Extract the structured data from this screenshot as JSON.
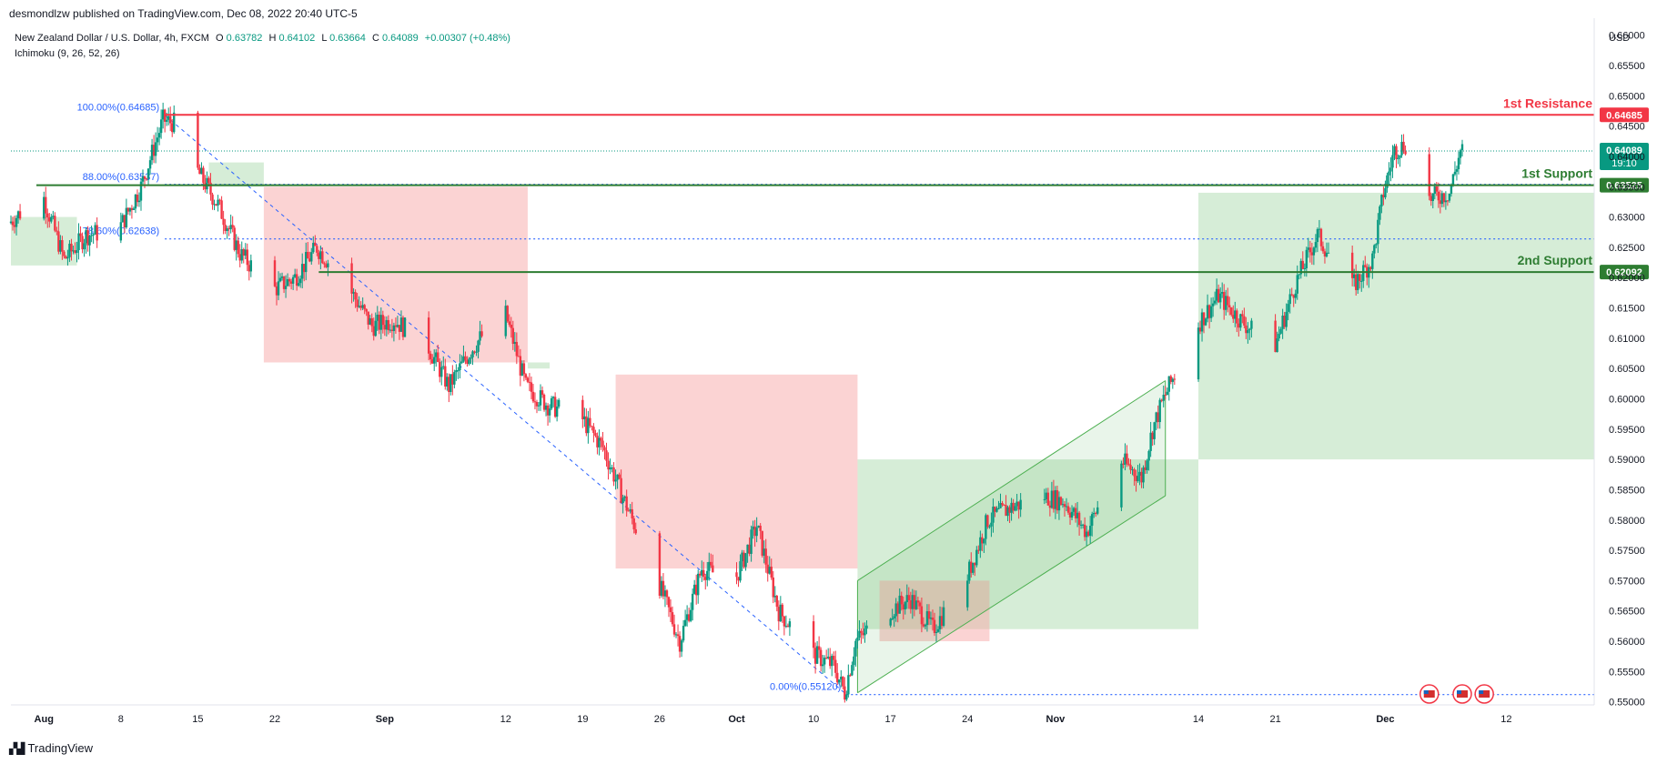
{
  "header": {
    "credit": "desmondlzw published on TradingView.com, Dec 08, 2022 20:40 UTC-5"
  },
  "legend": {
    "symbol": "New Zealand Dollar / U.S. Dollar, 4h, FXCM",
    "open_label": "O",
    "open": "0.63782",
    "high_label": "H",
    "high": "0.64102",
    "low_label": "L",
    "low": "0.63664",
    "close_label": "C",
    "close": "0.64089",
    "change": "+0.00307 (+0.48%)",
    "indicator": "Ichimoku (9, 26, 52, 26)"
  },
  "footer": {
    "logo_text": "TradingView",
    "logo_icon": "tradingview-logo-icon"
  },
  "colors": {
    "up": "#089981",
    "down": "#f23645",
    "resistance": "#f23645",
    "support": "#2e7d32",
    "fib": "#2962ff",
    "cloud_bull": "#a5d6a7",
    "cloud_bear": "#f8a8a8",
    "channel": "#4caf50"
  },
  "chart_data": {
    "type": "candlestick",
    "currency": "USD",
    "ylim": [
      0.5495,
      0.6628
    ],
    "y_ticks": [
      0.55,
      0.555,
      0.56,
      0.565,
      0.57,
      0.575,
      0.58,
      0.585,
      0.59,
      0.595,
      0.6,
      0.605,
      0.61,
      0.615,
      0.62,
      0.625,
      0.63,
      0.635,
      0.64,
      0.645,
      0.65,
      0.655,
      0.66
    ],
    "y_tick_labels": [
      "0.55000",
      "0.55500",
      "0.56000",
      "0.56500",
      "0.57000",
      "0.57500",
      "0.58000",
      "0.58500",
      "0.59000",
      "0.59500",
      "0.60000",
      "0.60500",
      "0.61000",
      "0.61500",
      "0.62000",
      "0.62500",
      "0.63000",
      "0.63500",
      "0.64000",
      "0.64500",
      "0.65000",
      "0.65500",
      "0.66000"
    ],
    "x_range": [
      "2022-07-29",
      "2022-12-20"
    ],
    "x_ticks": [
      {
        "date": "2022-08-01",
        "label": "Aug"
      },
      {
        "date": "2022-08-08",
        "label": "8"
      },
      {
        "date": "2022-08-15",
        "label": "15"
      },
      {
        "date": "2022-08-22",
        "label": "22"
      },
      {
        "date": "2022-09-01",
        "label": "Sep"
      },
      {
        "date": "2022-09-12",
        "label": "12"
      },
      {
        "date": "2022-09-19",
        "label": "19"
      },
      {
        "date": "2022-09-26",
        "label": "26"
      },
      {
        "date": "2022-10-03",
        "label": "Oct"
      },
      {
        "date": "2022-10-10",
        "label": "10"
      },
      {
        "date": "2022-10-17",
        "label": "17"
      },
      {
        "date": "2022-10-24",
        "label": "24"
      },
      {
        "date": "2022-11-01",
        "label": "Nov"
      },
      {
        "date": "2022-11-14",
        "label": "14"
      },
      {
        "date": "2022-11-21",
        "label": "21"
      },
      {
        "date": "2022-12-01",
        "label": "Dec"
      },
      {
        "date": "2022-12-12",
        "label": "12"
      }
    ],
    "price_path": [
      [
        "2022-07-29",
        0.629
      ],
      [
        "2022-08-01",
        0.634
      ],
      [
        "2022-08-03",
        0.623
      ],
      [
        "2022-08-05",
        0.627
      ],
      [
        "2022-08-08",
        0.628
      ],
      [
        "2022-08-10",
        0.635
      ],
      [
        "2022-08-12",
        0.646
      ],
      [
        "2022-08-13",
        0.6455
      ],
      [
        "2022-08-15",
        0.638
      ],
      [
        "2022-08-17",
        0.632
      ],
      [
        "2022-08-19",
        0.624
      ],
      [
        "2022-08-22",
        0.618
      ],
      [
        "2022-08-24",
        0.62
      ],
      [
        "2022-08-26",
        0.625
      ],
      [
        "2022-08-29",
        0.618
      ],
      [
        "2022-08-31",
        0.612
      ],
      [
        "2022-09-02",
        0.613
      ],
      [
        "2022-09-05",
        0.609
      ],
      [
        "2022-09-07",
        0.602
      ],
      [
        "2022-09-09",
        0.608
      ],
      [
        "2022-09-12",
        0.615
      ],
      [
        "2022-09-14",
        0.602
      ],
      [
        "2022-09-16",
        0.599
      ],
      [
        "2022-09-19",
        0.597
      ],
      [
        "2022-09-21",
        0.592
      ],
      [
        "2022-09-23",
        0.583
      ],
      [
        "2022-09-26",
        0.57
      ],
      [
        "2022-09-28",
        0.56
      ],
      [
        "2022-09-30",
        0.572
      ],
      [
        "2022-10-03",
        0.57
      ],
      [
        "2022-10-05",
        0.579
      ],
      [
        "2022-10-07",
        0.565
      ],
      [
        "2022-10-10",
        0.558
      ],
      [
        "2022-10-12",
        0.556
      ],
      [
        "2022-10-13",
        0.5515
      ],
      [
        "2022-10-14",
        0.56
      ],
      [
        "2022-10-17",
        0.565
      ],
      [
        "2022-10-19",
        0.567
      ],
      [
        "2022-10-21",
        0.562
      ],
      [
        "2022-10-24",
        0.57
      ],
      [
        "2022-10-26",
        0.58
      ],
      [
        "2022-10-28",
        0.582
      ],
      [
        "2022-10-31",
        0.584
      ],
      [
        "2022-11-02",
        0.583
      ],
      [
        "2022-11-04",
        0.578
      ],
      [
        "2022-11-07",
        0.59
      ],
      [
        "2022-11-09",
        0.587
      ],
      [
        "2022-11-10",
        0.595
      ],
      [
        "2022-11-11",
        0.6
      ],
      [
        "2022-11-14",
        0.612
      ],
      [
        "2022-11-16",
        0.617
      ],
      [
        "2022-11-18",
        0.613
      ],
      [
        "2022-11-21",
        0.608
      ],
      [
        "2022-11-23",
        0.619
      ],
      [
        "2022-11-25",
        0.627
      ],
      [
        "2022-11-28",
        0.618
      ],
      [
        "2022-11-30",
        0.623
      ],
      [
        "2022-12-01",
        0.634
      ],
      [
        "2022-12-02",
        0.641
      ],
      [
        "2022-12-03",
        0.642
      ],
      [
        "2022-12-05",
        0.633
      ],
      [
        "2022-12-07",
        0.634
      ],
      [
        "2022-12-08",
        0.6409
      ]
    ],
    "cloud": {
      "bull": [
        {
          "start": "2022-07-29",
          "end": "2022-08-04",
          "top": 0.63,
          "bottom": 0.622
        },
        {
          "start": "2022-08-16",
          "end": "2022-08-21",
          "top": 0.639,
          "bottom": 0.635
        },
        {
          "start": "2022-09-14",
          "end": "2022-09-16",
          "top": 0.606,
          "bottom": 0.605
        },
        {
          "start": "2022-10-14",
          "end": "2022-11-14",
          "top": 0.59,
          "bottom": 0.562
        },
        {
          "start": "2022-11-14",
          "end": "2022-12-20",
          "top": 0.634,
          "bottom": 0.59
        }
      ],
      "bear": [
        {
          "start": "2022-08-21",
          "end": "2022-09-14",
          "top": 0.635,
          "bottom": 0.606
        },
        {
          "start": "2022-09-22",
          "end": "2022-10-14",
          "top": 0.604,
          "bottom": 0.572
        },
        {
          "start": "2022-10-16",
          "end": "2022-10-26",
          "top": 0.57,
          "bottom": 0.56
        }
      ]
    },
    "channel": {
      "upper": [
        [
          "2022-10-14",
          0.57
        ],
        [
          "2022-11-11",
          0.603
        ]
      ],
      "lower": [
        [
          "2022-10-14",
          0.5515
        ],
        [
          "2022-11-11",
          0.584
        ]
      ]
    },
    "fib_trendline": [
      [
        "2022-08-12",
        0.6468
      ],
      [
        "2022-10-13",
        0.5512
      ]
    ],
    "levels": [
      {
        "name": "1st Resistance",
        "price": 0.64685,
        "label": "0.64685",
        "style": "resistance"
      },
      {
        "name": "1st Support",
        "price": 0.63525,
        "label": "0.63525",
        "style": "support"
      },
      {
        "name": "2nd Support",
        "price": 0.62092,
        "label": "0.62092",
        "style": "support"
      }
    ],
    "fib_levels": [
      {
        "label": "100.00%(0.64685)",
        "price": 0.64685
      },
      {
        "label": "88.00%(0.63537)",
        "price": 0.63537
      },
      {
        "label": "78.60%(0.62638)",
        "price": 0.62638
      },
      {
        "label": "0.00%(0.55120)",
        "price": 0.5512
      }
    ],
    "current_price": {
      "label": "0.64089",
      "countdown": "19:10",
      "price": 0.64089
    },
    "event_icons": [
      {
        "name": "us-flag-event-icon",
        "date": "2022-12-05"
      },
      {
        "name": "us-flag-event-icon",
        "date": "2022-12-08"
      },
      {
        "name": "us-flag-event-icon",
        "date": "2022-12-10"
      }
    ]
  }
}
